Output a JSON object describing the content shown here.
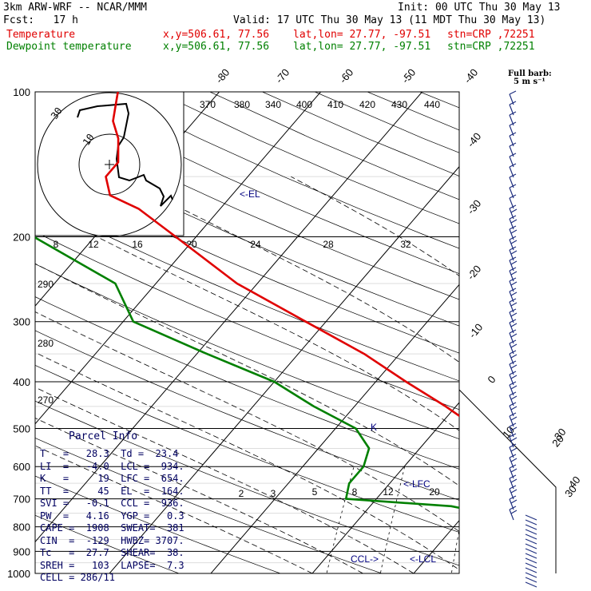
{
  "header": {
    "model": "3km ARW-WRF -- NCAR/MMM",
    "init": "Init: 00 UTC Thu 30 May 13",
    "fcst": "Fcst:   17 h",
    "valid": "Valid: 17 UTC Thu 30 May 13 (11 MDT Thu 30 May 13)",
    "temp_label": "Temperature",
    "dew_label": "Dewpoint temperature",
    "coords": "x,y=506.61, 77.56",
    "latlon": "lat,lon= 27.77, -97.51",
    "stn": "stn=CRP ,72251",
    "colors": {
      "temperature": "#e00000",
      "dewpoint": "#008000",
      "info": "#000060"
    }
  },
  "barb_legend": {
    "title": "Full barb:",
    "value": "5 m s⁻¹"
  },
  "chart_data": {
    "type": "line",
    "title": "Skew-T log-P sounding",
    "pressure_levels": [
      "100",
      "200",
      "300",
      "400",
      "500",
      "600",
      "700",
      "800",
      "900",
      "1000"
    ],
    "isotherms": [
      "-80",
      "-70",
      "-60",
      "-50",
      "-40",
      "-30",
      "-20",
      "-10",
      "0",
      "10",
      "20",
      "30",
      "40"
    ],
    "theta_labels": [
      "370",
      "380",
      "340",
      "400",
      "410",
      "420",
      "430",
      "440"
    ],
    "theta_left": [
      "290",
      "280",
      "270"
    ],
    "mixing_ratio": [
      "2",
      "3",
      "5",
      "8",
      "12",
      "20"
    ],
    "temperature_profile": [
      {
        "p": 1000,
        "t": 28.3
      },
      {
        "p": 975,
        "t": 26
      },
      {
        "p": 950,
        "t": 23.5
      },
      {
        "p": 925,
        "t": 21.5
      },
      {
        "p": 900,
        "t": 20.5
      },
      {
        "p": 875,
        "t": 20.5
      },
      {
        "p": 850,
        "t": 20.5
      },
      {
        "p": 825,
        "t": 20.3
      },
      {
        "p": 800,
        "t": 19
      },
      {
        "p": 775,
        "t": 17
      },
      {
        "p": 750,
        "t": 15
      },
      {
        "p": 700,
        "t": 11
      },
      {
        "p": 650,
        "t": 7
      },
      {
        "p": 600,
        "t": 3
      },
      {
        "p": 550,
        "t": -1.5
      },
      {
        "p": 500,
        "t": -6
      },
      {
        "p": 450,
        "t": -11
      },
      {
        "p": 400,
        "t": -17
      },
      {
        "p": 350,
        "t": -23.5
      },
      {
        "p": 300,
        "t": -32
      },
      {
        "p": 250,
        "t": -42
      },
      {
        "p": 200,
        "t": -52
      },
      {
        "p": 175,
        "t": -58
      },
      {
        "p": 164,
        "t": -62
      },
      {
        "p": 150,
        "t": -64
      },
      {
        "p": 140,
        "t": -64
      },
      {
        "p": 125,
        "t": -66
      },
      {
        "p": 115,
        "t": -68
      },
      {
        "p": 100,
        "t": -70
      }
    ],
    "dewpoint_profile": [
      {
        "p": 1000,
        "t": 23.4
      },
      {
        "p": 975,
        "t": 22.3
      },
      {
        "p": 950,
        "t": 21
      },
      {
        "p": 900,
        "t": 18
      },
      {
        "p": 850,
        "t": 14
      },
      {
        "p": 800,
        "t": 8.5
      },
      {
        "p": 750,
        "t": 2
      },
      {
        "p": 725,
        "t": -2
      },
      {
        "p": 700,
        "t": -13
      },
      {
        "p": 650,
        "t": -14
      },
      {
        "p": 600,
        "t": -14
      },
      {
        "p": 550,
        "t": -15
      },
      {
        "p": 500,
        "t": -18
      },
      {
        "p": 450,
        "t": -24
      },
      {
        "p": 400,
        "t": -30
      },
      {
        "p": 350,
        "t": -39
      },
      {
        "p": 300,
        "t": -49
      },
      {
        "p": 250,
        "t": -54
      },
      {
        "p": 200,
        "t": -66
      },
      {
        "p": 175,
        "t": -69
      },
      {
        "p": 150,
        "t": -72
      },
      {
        "p": 125,
        "t": -76
      },
      {
        "p": 100,
        "t": -87
      }
    ],
    "annotations": [
      "<-EL",
      "<-LFC",
      "CCL->",
      "<-LCL",
      "K"
    ],
    "hodograph": {
      "rings": [
        "10",
        "30"
      ],
      "axis_label": "kts",
      "speed_ticks": [
        "8",
        "12",
        "16",
        "20",
        "24",
        "28",
        "32"
      ]
    },
    "barb_side_labels": [
      "30",
      "40"
    ]
  },
  "parcel": {
    "title": "Parcel Info",
    "rows": [
      "T   =   28.3  Td =  23.4",
      "LI  =   -4.0  LCL =  934.",
      "K   =     19  LFC =  654.",
      "TT  =     45  EL  =  164.",
      "SVI =   -0.1  CCL =  936.",
      "PW  =   4.16  YGP =   0.3",
      "CAPE =  1908  SWEAT=  381",
      "CIN  =  -129  HWBZ= 3707.",
      "Tc   =  27.7  SHEAR=  38.",
      "SREH =   103  LAPSE=  7.3",
      "CELL = 286/11"
    ]
  }
}
